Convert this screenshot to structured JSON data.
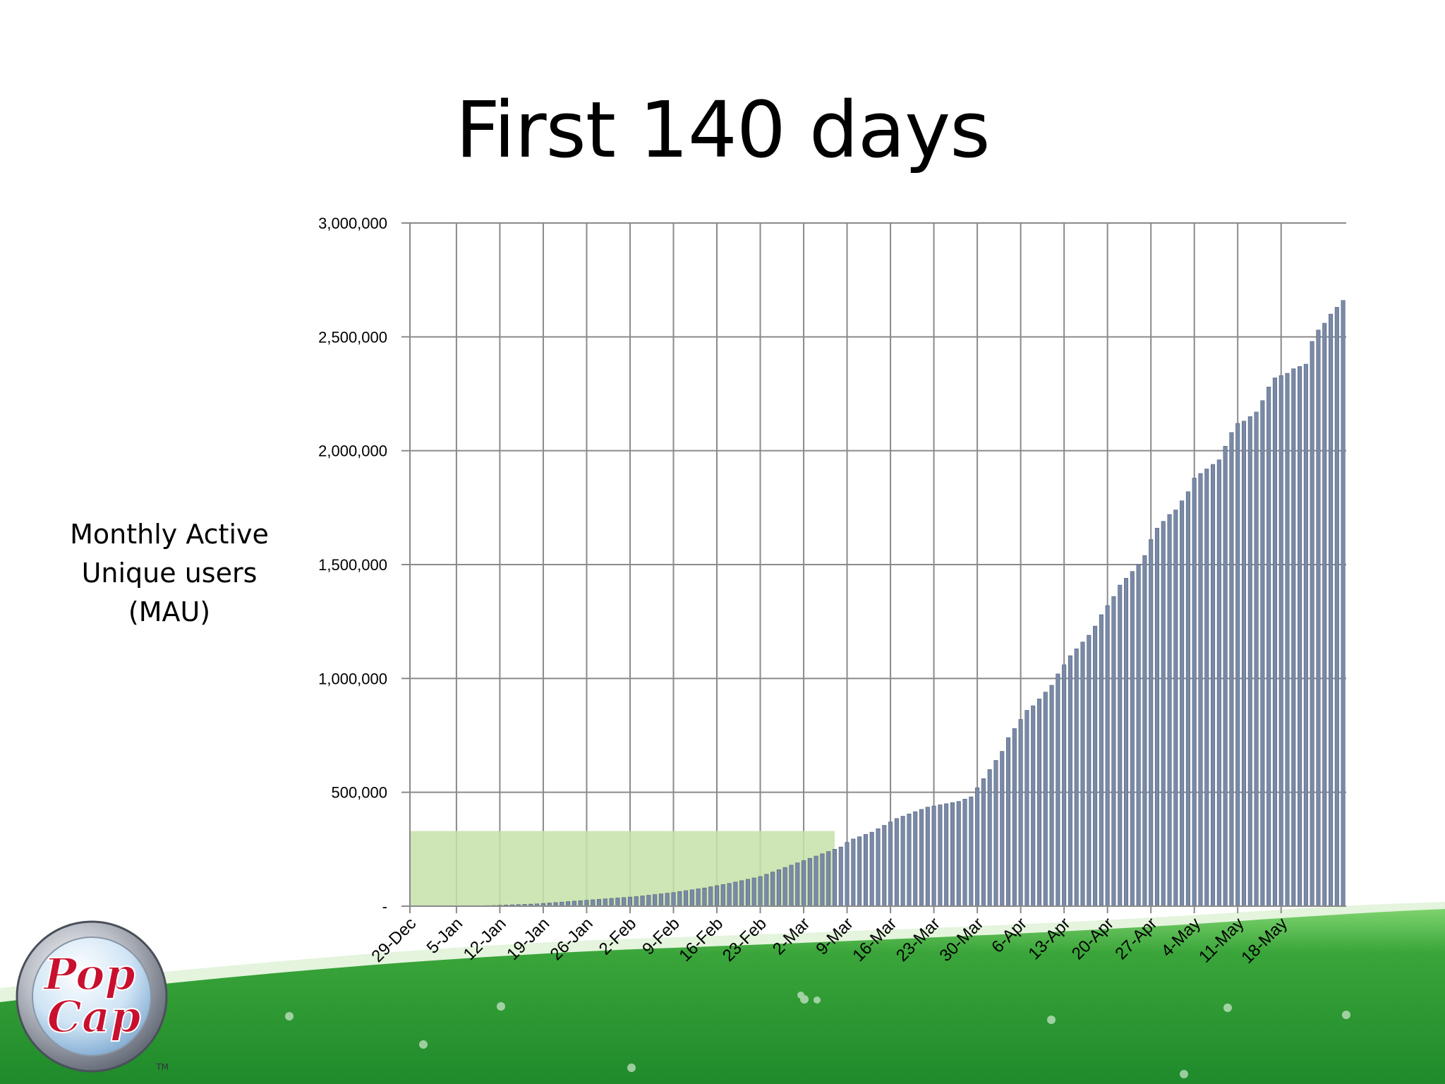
{
  "slide": {
    "title": "First 140 days",
    "y_axis_title": [
      "Monthly Active",
      "Unique users",
      "(MAU)"
    ]
  },
  "logo": {
    "text": [
      "Pop",
      "Cap"
    ],
    "trademark": "TM"
  },
  "colors": {
    "bar": "#7a8aa6",
    "bar_edge": "#4f5f7e",
    "highlight": "#c6e0a8",
    "grid": "#8a8a8a",
    "ground": "#3aa53a"
  },
  "chart_data": {
    "type": "bar",
    "title": "",
    "xlabel": "",
    "ylabel": "Monthly Active Unique users (MAU)",
    "ylim": [
      0,
      3000000
    ],
    "grid": true,
    "legend": "none",
    "y_tick_labels": [
      "-",
      "500,000",
      "1,000,000",
      "1,500,000",
      "2,000,000",
      "2,500,000",
      "3,000,000"
    ],
    "y_ticks": [
      0,
      500000,
      1000000,
      1500000,
      2000000,
      2500000,
      3000000
    ],
    "x_tick_labels": [
      "29-Dec",
      "5-Jan",
      "12-Jan",
      "19-Jan",
      "26-Jan",
      "2-Feb",
      "9-Feb",
      "16-Feb",
      "23-Feb",
      "2-Mar",
      "9-Mar",
      "16-Mar",
      "23-Mar",
      "30-Mar",
      "6-Apr",
      "13-Apr",
      "20-Apr",
      "27-Apr",
      "4-May",
      "11-May",
      "18-May"
    ],
    "x_tick_dates": [
      "29-Dec",
      "5-Jan",
      "12-Jan",
      "19-Jan",
      "26-Jan",
      "2-Feb",
      "9-Feb",
      "16-Feb",
      "23-Feb",
      "2-Mar",
      "9-Mar",
      "16-Mar",
      "23-Mar",
      "30-Mar",
      "6-Apr",
      "13-Apr",
      "20-Apr",
      "27-Apr",
      "4-May",
      "11-May",
      "18-May"
    ],
    "highlight_region": {
      "x_start": "29-Dec",
      "x_end": "7-Mar",
      "y_max": 330000
    },
    "series": [
      {
        "name": "",
        "values": [
          0,
          0,
          0,
          0,
          0,
          0,
          0,
          0,
          500,
          1000,
          1500,
          2000,
          2500,
          3000,
          4000,
          5000,
          6000,
          7000,
          8000,
          9000,
          10000,
          12000,
          14000,
          16000,
          18000,
          20000,
          22000,
          24000,
          26000,
          28000,
          30000,
          32000,
          34000,
          36000,
          38000,
          40000,
          42000,
          45000,
          48000,
          51000,
          54000,
          57000,
          60000,
          64000,
          68000,
          72000,
          76000,
          80000,
          85000,
          90000,
          95000,
          100000,
          106000,
          112000,
          118000,
          124000,
          130000,
          140000,
          150000,
          160000,
          170000,
          180000,
          190000,
          200000,
          210000,
          220000,
          230000,
          240000,
          250000,
          260000,
          280000,
          295000,
          305000,
          315000,
          325000,
          340000,
          355000,
          370000,
          385000,
          395000,
          405000,
          415000,
          425000,
          435000,
          440000,
          445000,
          450000,
          455000,
          460000,
          470000,
          480000,
          520000,
          560000,
          600000,
          640000,
          680000,
          740000,
          780000,
          820000,
          860000,
          880000,
          910000,
          940000,
          970000,
          1020000,
          1060000,
          1100000,
          1130000,
          1160000,
          1190000,
          1230000,
          1280000,
          1320000,
          1360000,
          1410000,
          1440000,
          1470000,
          1500000,
          1540000,
          1610000,
          1660000,
          1690000,
          1720000,
          1740000,
          1780000,
          1820000,
          1880000,
          1900000,
          1920000,
          1940000,
          1960000,
          2020000,
          2080000,
          2120000,
          2130000,
          2150000,
          2170000,
          2220000,
          2280000,
          2320000,
          2330000,
          2340000,
          2360000,
          2370000,
          2380000,
          2480000,
          2530000,
          2560000,
          2600000,
          2630000,
          2660000
        ]
      }
    ]
  }
}
